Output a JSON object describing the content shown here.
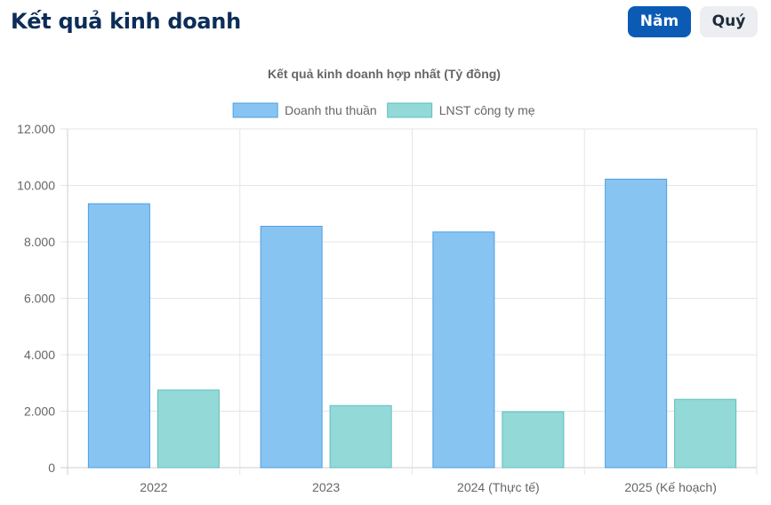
{
  "header": {
    "title": "Kết quả kinh doanh"
  },
  "period_toggle": {
    "year_label": "Năm",
    "quarter_label": "Quý",
    "active": "year"
  },
  "chart_data": {
    "type": "bar",
    "title": "Kết quả kinh doanh hợp nhất (Tỷ đồng)",
    "categories": [
      "2022",
      "2023",
      "2024 (Thực tế)",
      "2025 (Kế hoạch)"
    ],
    "series": [
      {
        "name": "Doanh thu thuần",
        "values": [
          9350,
          8550,
          8350,
          10220
        ],
        "fill": "#88c4f2",
        "stroke": "#4d9fe0"
      },
      {
        "name": "LNST công ty mẹ",
        "values": [
          2750,
          2200,
          1980,
          2420
        ],
        "fill": "#92d9d8",
        "stroke": "#5cbfbd"
      }
    ],
    "ylim": [
      0,
      12000
    ],
    "yticks": [
      "0",
      "2.000",
      "4.000",
      "6.000",
      "8.000",
      "10.000",
      "12.000"
    ],
    "legend_position": "top",
    "grid": true
  }
}
